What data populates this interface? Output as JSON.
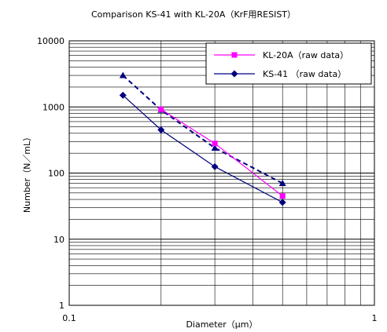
{
  "chart_data": {
    "type": "line",
    "title": "Comparison KS-41 with KL-20A（KrF用RESIST）",
    "xlabel": "Diameter（μm）",
    "ylabel": "Number（N／mL）",
    "x_scale": "log",
    "y_scale": "log",
    "xlim": [
      0.1,
      1
    ],
    "ylim": [
      1,
      10000
    ],
    "x_tick_labels": [
      "0.1",
      "1"
    ],
    "y_tick_labels": [
      "1",
      "10",
      "100",
      "1000",
      "10000"
    ],
    "grid": true,
    "legend_position": "top-right",
    "series": [
      {
        "name": "KL-20A（raw data）",
        "color": "#ff00ff",
        "marker": "square",
        "line": "solid",
        "x": [
          0.2,
          0.3,
          0.5
        ],
        "y": [
          920,
          280,
          45
        ]
      },
      {
        "name": "KS-41 （raw data）",
        "color": "#000080",
        "marker": "diamond",
        "line": "solid",
        "x": [
          0.15,
          0.2,
          0.3,
          0.5
        ],
        "y": [
          1500,
          450,
          125,
          36
        ]
      },
      {
        "name": "",
        "color": "#000080",
        "marker": "triangle",
        "line": "dashed",
        "x": [
          0.15,
          0.2,
          0.3,
          0.5
        ],
        "y": [
          3000,
          900,
          240,
          70
        ]
      }
    ]
  }
}
